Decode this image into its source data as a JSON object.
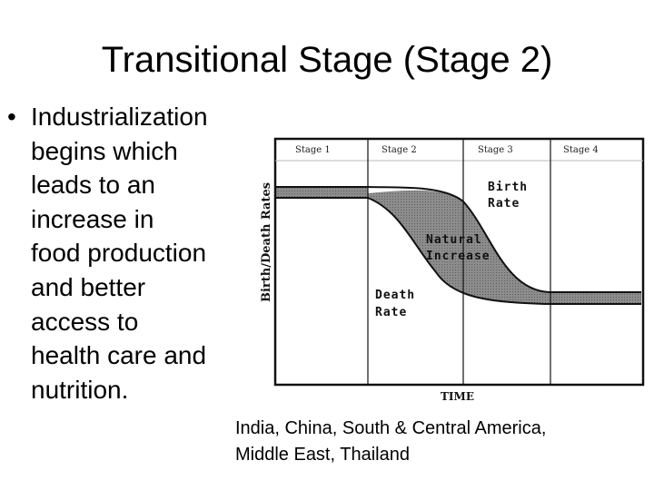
{
  "title": "Transitional Stage (Stage 2)",
  "bullet": {
    "symbol": "•",
    "lines": [
      "Industrialization",
      "begins which",
      "leads to an",
      "increase in",
      "food production",
      "and better",
      "access to",
      "health care and",
      "nutrition."
    ]
  },
  "diagram": {
    "stages": [
      "Stage 1",
      "Stage 2",
      "Stage 3",
      "Stage 4"
    ],
    "y_axis_label": "Birth/Death Rates",
    "x_axis_label": "TIME",
    "birth_rate_label": [
      "Birth",
      "Rate"
    ],
    "natural_increase_label": [
      "Natural",
      "Increase"
    ],
    "death_rate_label": [
      "Death",
      "Rate"
    ],
    "colors": {
      "shading": "#8c8c8c",
      "lines": "#111111"
    }
  },
  "caption": {
    "lines": [
      "India, China, South & Central America,",
      "Middle East, Thailand"
    ]
  }
}
